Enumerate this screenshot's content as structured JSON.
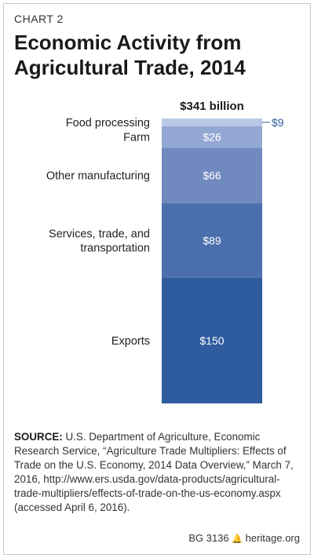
{
  "header": {
    "chart_number": "CHART 2",
    "title": "Economic Activity from Agricultural Trade, 2014"
  },
  "chart_data": {
    "type": "bar",
    "stacked": true,
    "total_label": "$341 billion",
    "series": [
      {
        "name": "Exports",
        "value": 150,
        "label": "$150",
        "color": "#2e5c9e"
      },
      {
        "name": "Services, trade, and transportation",
        "value": 89,
        "label": "$89",
        "color": "#4a6fac"
      },
      {
        "name": "Other manufacturing",
        "value": 66,
        "label": "$66",
        "color": "#7089be"
      },
      {
        "name": "Farm",
        "value": 26,
        "label": "$26",
        "color": "#93a8d2"
      },
      {
        "name": "Food processing",
        "value": 9,
        "label": "$9",
        "color": "#b9c8e4"
      }
    ],
    "total": 341
  },
  "source": {
    "prefix": "SOURCE:",
    "text": "U.S. Department of Agriculture, Economic Research Service, “Agriculture Trade Multipliers: Effects of Trade on the U.S. Economy, 2014 Data Overview,” March 7, 2016, http://www.ers.usda.gov/data-products/agricultural-trade-multipliers/effects-of-trade-on-the-us-economy.aspx (accessed April 6, 2016)."
  },
  "footer": {
    "report_id": "BG 3136",
    "site": "heritage.org"
  }
}
